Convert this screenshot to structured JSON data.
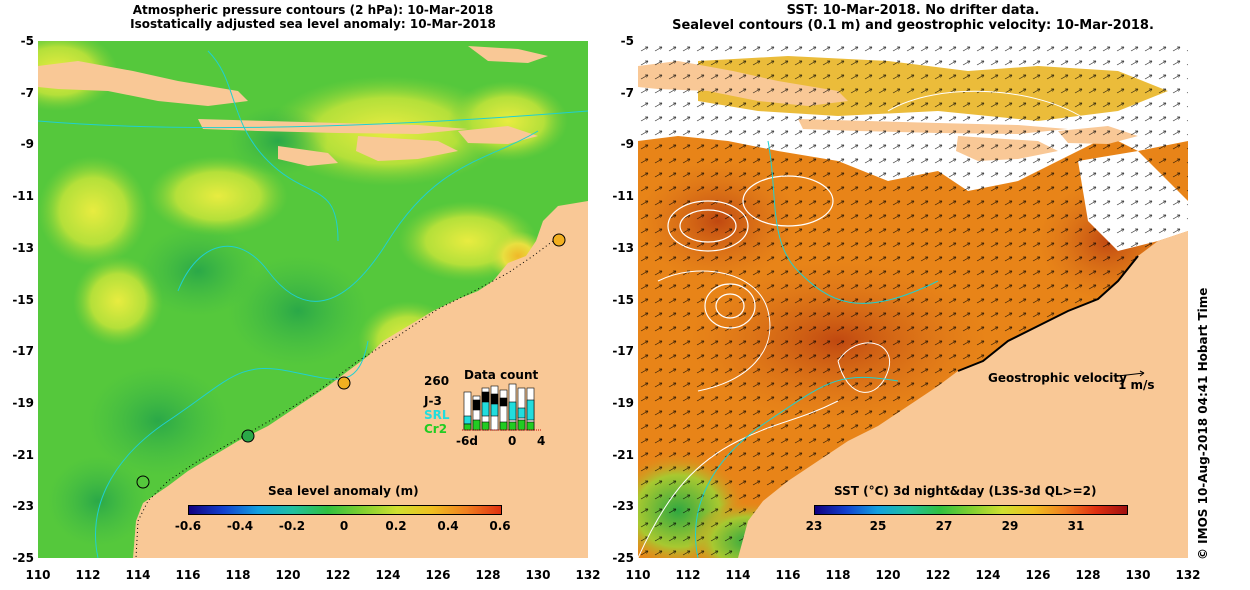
{
  "left_panel": {
    "title_line1": "Atmospheric pressure contours (2 hPa): 10-Mar-2018",
    "title_line2": "Isostatically adjusted sea level anomaly: 10-Mar-2018",
    "colorbar_title": "Sea level anomaly (m)",
    "colorbar_ticks": [
      "-0.6",
      "-0.4",
      "-0.2",
      "0",
      "0.2",
      "0.4",
      "0.6"
    ],
    "legend": {
      "title": "Data count",
      "max_count": "260",
      "missions": [
        {
          "name": "J-3",
          "color": "#000000"
        },
        {
          "name": "SRL",
          "color": "#22dddd"
        },
        {
          "name": "Cr2",
          "color": "#22cc22"
        }
      ],
      "x_ticks": [
        "-6d",
        "0",
        "4"
      ]
    },
    "colors": {
      "land": "#f9c896",
      "ocean_mid": "#55c83c",
      "ocean_high": "#c8e83c",
      "coast_line": "#20d0d0"
    }
  },
  "right_panel": {
    "title_line1": "SST: 10-Mar-2018. No drifter data.",
    "title_line2": "Sealevel contours (0.1 m) and geostrophic velocity: 10-Mar-2018.",
    "colorbar_title": "SST (°C) 3d night&day (L3S-3d QL>=2)",
    "colorbar_ticks": [
      "23",
      "25",
      "27",
      "29",
      "31"
    ],
    "velocity_label": "Geostrophic velocity",
    "velocity_scale": "1 m/s",
    "colors": {
      "land": "#f9c896",
      "sst_warm": "#e88418",
      "sst_hot": "#c85010",
      "cloud": "#ffffff"
    }
  },
  "axes": {
    "y_ticks": [
      "-5",
      "-7",
      "-9",
      "-11",
      "-13",
      "-15",
      "-17",
      "-19",
      "-21",
      "-23",
      "-25"
    ],
    "x_ticks": [
      "110",
      "112",
      "114",
      "116",
      "118",
      "120",
      "122",
      "124",
      "126",
      "128",
      "130",
      "132"
    ],
    "lon_range": [
      110,
      132
    ],
    "lat_range": [
      -25,
      -5
    ]
  },
  "credit": "© IMOS 10-Aug-2018 04:41 Hobart Time"
}
